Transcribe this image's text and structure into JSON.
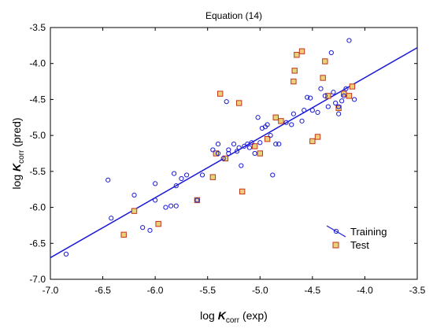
{
  "chart_data": {
    "type": "scatter",
    "title": "Equation (14)",
    "xlabel": {
      "main": "log ",
      "symbol": "K",
      "sub": "corr",
      "unit": " (exp)"
    },
    "ylabel": {
      "main": "log ",
      "symbol": "K",
      "sub": "corr",
      "unit": " (pred)"
    },
    "xlim": [
      -7.0,
      -3.5
    ],
    "ylim": [
      -7.0,
      -3.5
    ],
    "x_ticks": [
      "-7.0",
      "-6.5",
      "-6.0",
      "-5.5",
      "-5.0",
      "-4.5",
      "-4.0",
      "-3.5"
    ],
    "y_ticks": [
      "-3.5",
      "-4.0",
      "-4.5",
      "-5.0",
      "-5.5",
      "-6.0",
      "-6.5",
      "-7.0"
    ],
    "grid": false,
    "legend_position": "bottom-right",
    "fit_line": {
      "x": [
        -7.0,
        -3.5
      ],
      "y": [
        -6.7,
        -3.78
      ],
      "color": "#1a1ad6"
    },
    "series": [
      {
        "name": "Training",
        "marker": "circle",
        "color": "#1a1ad6",
        "points": [
          [
            -6.85,
            -6.65
          ],
          [
            -6.45,
            -5.62
          ],
          [
            -6.42,
            -6.15
          ],
          [
            -6.2,
            -5.83
          ],
          [
            -6.12,
            -6.28
          ],
          [
            -6.05,
            -6.32
          ],
          [
            -6.0,
            -5.9
          ],
          [
            -6.0,
            -5.67
          ],
          [
            -5.9,
            -6.0
          ],
          [
            -5.85,
            -5.98
          ],
          [
            -5.82,
            -5.53
          ],
          [
            -5.8,
            -5.7
          ],
          [
            -5.8,
            -5.98
          ],
          [
            -5.75,
            -5.6
          ],
          [
            -5.7,
            -5.55
          ],
          [
            -5.6,
            -5.9
          ],
          [
            -5.55,
            -5.55
          ],
          [
            -5.45,
            -5.2
          ],
          [
            -5.4,
            -5.12
          ],
          [
            -5.4,
            -5.25
          ],
          [
            -5.35,
            -5.32
          ],
          [
            -5.32,
            -4.53
          ],
          [
            -5.3,
            -5.25
          ],
          [
            -5.3,
            -5.2
          ],
          [
            -5.25,
            -5.12
          ],
          [
            -5.22,
            -5.22
          ],
          [
            -5.2,
            -5.17
          ],
          [
            -5.18,
            -5.42
          ],
          [
            -5.15,
            -5.15
          ],
          [
            -5.12,
            -5.12
          ],
          [
            -5.1,
            -5.17
          ],
          [
            -5.08,
            -5.1
          ],
          [
            -5.05,
            -5.25
          ],
          [
            -5.02,
            -4.75
          ],
          [
            -5.0,
            -5.1
          ],
          [
            -4.98,
            -4.9
          ],
          [
            -4.95,
            -4.88
          ],
          [
            -4.93,
            -4.85
          ],
          [
            -4.9,
            -5.0
          ],
          [
            -4.88,
            -5.55
          ],
          [
            -4.85,
            -5.12
          ],
          [
            -4.82,
            -5.12
          ],
          [
            -4.75,
            -4.82
          ],
          [
            -4.7,
            -4.85
          ],
          [
            -4.68,
            -4.7
          ],
          [
            -4.6,
            -4.8
          ],
          [
            -4.58,
            -4.65
          ],
          [
            -4.55,
            -4.47
          ],
          [
            -4.52,
            -4.48
          ],
          [
            -4.5,
            -4.65
          ],
          [
            -4.45,
            -4.68
          ],
          [
            -4.42,
            -4.35
          ],
          [
            -4.38,
            -4.45
          ],
          [
            -4.35,
            -4.6
          ],
          [
            -4.32,
            -3.85
          ],
          [
            -4.3,
            -4.4
          ],
          [
            -4.28,
            -4.55
          ],
          [
            -4.25,
            -4.6
          ],
          [
            -4.25,
            -4.7
          ],
          [
            -4.22,
            -4.52
          ],
          [
            -4.2,
            -4.45
          ],
          [
            -4.18,
            -4.35
          ],
          [
            -4.15,
            -3.68
          ],
          [
            -4.1,
            -4.5
          ]
        ]
      },
      {
        "name": "Test",
        "marker": "square",
        "color": "#c6331b",
        "fill": "#e8d27a",
        "points": [
          [
            -6.3,
            -6.38
          ],
          [
            -6.2,
            -6.05
          ],
          [
            -5.97,
            -6.23
          ],
          [
            -5.6,
            -5.9
          ],
          [
            -5.45,
            -5.58
          ],
          [
            -5.42,
            -5.25
          ],
          [
            -5.38,
            -4.42
          ],
          [
            -5.33,
            -5.32
          ],
          [
            -5.2,
            -4.55
          ],
          [
            -5.17,
            -5.78
          ],
          [
            -5.05,
            -5.15
          ],
          [
            -5.0,
            -5.25
          ],
          [
            -4.93,
            -5.05
          ],
          [
            -4.85,
            -4.75
          ],
          [
            -4.8,
            -4.8
          ],
          [
            -4.68,
            -4.25
          ],
          [
            -4.67,
            -4.1
          ],
          [
            -4.65,
            -3.88
          ],
          [
            -4.6,
            -3.83
          ],
          [
            -4.5,
            -5.08
          ],
          [
            -4.45,
            -5.02
          ],
          [
            -4.4,
            -4.2
          ],
          [
            -4.38,
            -3.97
          ],
          [
            -4.35,
            -4.45
          ],
          [
            -4.25,
            -4.62
          ],
          [
            -4.2,
            -4.42
          ],
          [
            -4.15,
            -4.45
          ],
          [
            -4.12,
            -4.32
          ]
        ]
      }
    ]
  }
}
